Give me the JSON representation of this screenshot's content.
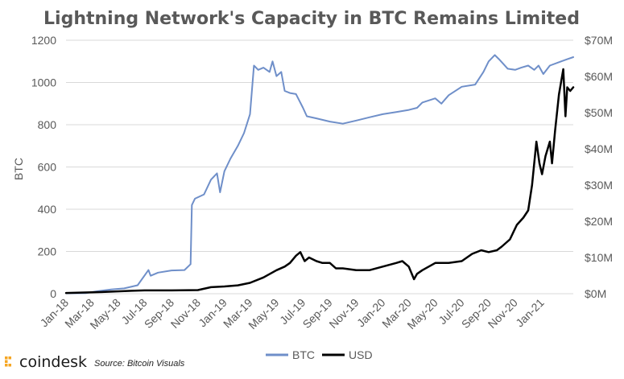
{
  "branding": {
    "logo_text": "coindesk",
    "source": "Source: Bitcoin Visuals"
  },
  "colors": {
    "btc": "#6f8fc9",
    "usd": "#000000",
    "grid": "#d9d9d9",
    "text": "#595959",
    "logo_accent": "#f5a623"
  },
  "chart_data": {
    "type": "line",
    "title": "Lightning Network's Capacity in BTC Remains Limited",
    "ylabel": "BTC",
    "ylabel_right": "",
    "xlim": [
      "2018-01-01",
      "2021-03-15"
    ],
    "ylim": [
      0,
      1200
    ],
    "y2lim": [
      0,
      70000000
    ],
    "yticks": [
      "0",
      "200",
      "400",
      "600",
      "800",
      "1000",
      "1200"
    ],
    "y2ticks": [
      "$0M",
      "$10M",
      "$20M",
      "$30M",
      "$40M",
      "$50M",
      "$60M",
      "$70M"
    ],
    "xticks": [
      {
        "label": "Jan-18",
        "date": "2018-01-01"
      },
      {
        "label": "Mar-18",
        "date": "2018-03-01"
      },
      {
        "label": "May-18",
        "date": "2018-05-01"
      },
      {
        "label": "Jul-18",
        "date": "2018-07-01"
      },
      {
        "label": "Sep-18",
        "date": "2018-09-01"
      },
      {
        "label": "Nov-18",
        "date": "2018-11-01"
      },
      {
        "label": "Jan-19",
        "date": "2019-01-01"
      },
      {
        "label": "Mar-19",
        "date": "2019-03-01"
      },
      {
        "label": "May-19",
        "date": "2019-05-01"
      },
      {
        "label": "Jul-19",
        "date": "2019-07-01"
      },
      {
        "label": "Sep-19",
        "date": "2019-09-01"
      },
      {
        "label": "Nov-19",
        "date": "2019-11-01"
      },
      {
        "label": "Jan-20",
        "date": "2020-01-01"
      },
      {
        "label": "Mar-20",
        "date": "2020-03-01"
      },
      {
        "label": "May-20",
        "date": "2020-05-01"
      },
      {
        "label": "Jul-20",
        "date": "2020-07-01"
      },
      {
        "label": "Sep-20",
        "date": "2020-09-01"
      },
      {
        "label": "Nov-20",
        "date": "2020-11-01"
      },
      {
        "label": "Jan-21",
        "date": "2021-01-01"
      }
    ],
    "grid": true,
    "legend_position": "bottom",
    "series": [
      {
        "name": "BTC",
        "axis": "left",
        "color": "#6f8fc9",
        "points": [
          [
            "2018-01-01",
            2
          ],
          [
            "2018-02-15",
            3
          ],
          [
            "2018-03-15",
            12
          ],
          [
            "2018-04-15",
            20
          ],
          [
            "2018-05-15",
            25
          ],
          [
            "2018-06-15",
            40
          ],
          [
            "2018-07-10",
            112
          ],
          [
            "2018-07-15",
            85
          ],
          [
            "2018-08-01",
            100
          ],
          [
            "2018-09-01",
            110
          ],
          [
            "2018-10-01",
            112
          ],
          [
            "2018-10-15",
            140
          ],
          [
            "2018-10-18",
            420
          ],
          [
            "2018-10-25",
            450
          ],
          [
            "2018-11-15",
            470
          ],
          [
            "2018-12-01",
            540
          ],
          [
            "2018-12-15",
            570
          ],
          [
            "2018-12-22",
            480
          ],
          [
            "2019-01-01",
            580
          ],
          [
            "2019-01-15",
            640
          ],
          [
            "2019-02-01",
            700
          ],
          [
            "2019-02-15",
            760
          ],
          [
            "2019-03-01",
            850
          ],
          [
            "2019-03-10",
            1080
          ],
          [
            "2019-03-20",
            1060
          ],
          [
            "2019-04-01",
            1070
          ],
          [
            "2019-04-15",
            1050
          ],
          [
            "2019-04-22",
            1100
          ],
          [
            "2019-05-01",
            1030
          ],
          [
            "2019-05-12",
            1050
          ],
          [
            "2019-05-20",
            960
          ],
          [
            "2019-06-01",
            950
          ],
          [
            "2019-06-15",
            945
          ],
          [
            "2019-07-01",
            880
          ],
          [
            "2019-07-10",
            840
          ],
          [
            "2019-08-01",
            830
          ],
          [
            "2019-09-01",
            815
          ],
          [
            "2019-10-01",
            805
          ],
          [
            "2019-11-01",
            820
          ],
          [
            "2019-12-01",
            835
          ],
          [
            "2020-01-01",
            850
          ],
          [
            "2020-02-01",
            860
          ],
          [
            "2020-03-01",
            870
          ],
          [
            "2020-03-20",
            880
          ],
          [
            "2020-04-01",
            905
          ],
          [
            "2020-05-01",
            925
          ],
          [
            "2020-05-15",
            900
          ],
          [
            "2020-06-01",
            940
          ],
          [
            "2020-07-01",
            980
          ],
          [
            "2020-08-01",
            990
          ],
          [
            "2020-08-20",
            1050
          ],
          [
            "2020-09-01",
            1100
          ],
          [
            "2020-09-15",
            1130
          ],
          [
            "2020-09-25",
            1110
          ],
          [
            "2020-10-15",
            1065
          ],
          [
            "2020-11-01",
            1060
          ],
          [
            "2020-11-15",
            1070
          ],
          [
            "2020-12-01",
            1080
          ],
          [
            "2020-12-15",
            1060
          ],
          [
            "2020-12-25",
            1080
          ],
          [
            "2021-01-05",
            1040
          ],
          [
            "2021-01-20",
            1080
          ],
          [
            "2021-02-15",
            1100
          ],
          [
            "2021-03-01",
            1110
          ],
          [
            "2021-03-15",
            1120
          ]
        ]
      },
      {
        "name": "USD",
        "axis": "right",
        "color": "#000000",
        "points": [
          [
            "2018-01-01",
            200000
          ],
          [
            "2018-04-01",
            500000
          ],
          [
            "2018-06-01",
            800000
          ],
          [
            "2018-07-01",
            900000
          ],
          [
            "2018-09-01",
            900000
          ],
          [
            "2018-11-01",
            1000000
          ],
          [
            "2018-12-01",
            1800000
          ],
          [
            "2019-01-01",
            2000000
          ],
          [
            "2019-02-01",
            2300000
          ],
          [
            "2019-03-01",
            3000000
          ],
          [
            "2019-04-01",
            4500000
          ],
          [
            "2019-05-01",
            6500000
          ],
          [
            "2019-05-20",
            7500000
          ],
          [
            "2019-06-01",
            8500000
          ],
          [
            "2019-06-15",
            10500000
          ],
          [
            "2019-06-25",
            11500000
          ],
          [
            "2019-07-05",
            9000000
          ],
          [
            "2019-07-15",
            10000000
          ],
          [
            "2019-08-01",
            9000000
          ],
          [
            "2019-08-15",
            8500000
          ],
          [
            "2019-09-01",
            8500000
          ],
          [
            "2019-09-15",
            7000000
          ],
          [
            "2019-10-01",
            7000000
          ],
          [
            "2019-11-01",
            6500000
          ],
          [
            "2019-12-01",
            6500000
          ],
          [
            "2020-01-01",
            7500000
          ],
          [
            "2020-02-01",
            8500000
          ],
          [
            "2020-02-15",
            9000000
          ],
          [
            "2020-03-01",
            7500000
          ],
          [
            "2020-03-13",
            4000000
          ],
          [
            "2020-03-20",
            5500000
          ],
          [
            "2020-04-01",
            6500000
          ],
          [
            "2020-05-01",
            8500000
          ],
          [
            "2020-06-01",
            8500000
          ],
          [
            "2020-07-01",
            9000000
          ],
          [
            "2020-07-25",
            11000000
          ],
          [
            "2020-08-15",
            12000000
          ],
          [
            "2020-09-01",
            11500000
          ],
          [
            "2020-09-20",
            12000000
          ],
          [
            "2020-10-01",
            13000000
          ],
          [
            "2020-10-20",
            15000000
          ],
          [
            "2020-11-05",
            19000000
          ],
          [
            "2020-11-20",
            21000000
          ],
          [
            "2020-12-01",
            23000000
          ],
          [
            "2020-12-10",
            30000000
          ],
          [
            "2020-12-20",
            42000000
          ],
          [
            "2020-12-27",
            36000000
          ],
          [
            "2021-01-02",
            33000000
          ],
          [
            "2021-01-10",
            38000000
          ],
          [
            "2021-01-20",
            42000000
          ],
          [
            "2021-01-25",
            36000000
          ],
          [
            "2021-02-01",
            45000000
          ],
          [
            "2021-02-10",
            55000000
          ],
          [
            "2021-02-20",
            62000000
          ],
          [
            "2021-02-25",
            49000000
          ],
          [
            "2021-03-01",
            57000000
          ],
          [
            "2021-03-08",
            56000000
          ],
          [
            "2021-03-15",
            57000000
          ]
        ]
      }
    ]
  }
}
